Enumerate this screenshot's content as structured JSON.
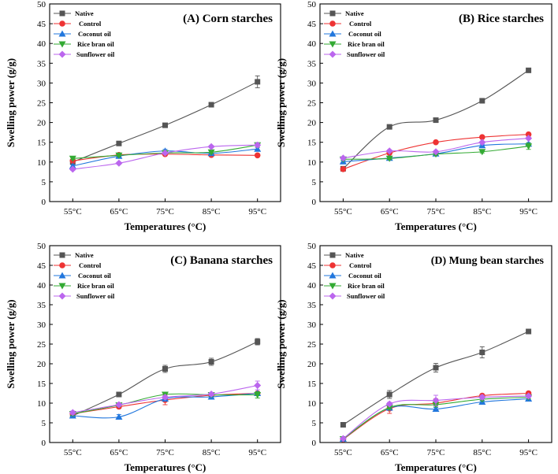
{
  "colors": {
    "native": "#555555",
    "control": "#ee3333",
    "coconut": "#2277dd",
    "rice_bran": "#33aa33",
    "sunflower": "#bb66ee"
  },
  "chart_data": [
    {
      "type": "line",
      "title": "(A) Corn starches",
      "xlabel": "Temperatures (°C)",
      "ylabel": "Swelling power (g/g)",
      "categories": [
        "55°C",
        "65°C",
        "75°C",
        "85°C",
        "95°C"
      ],
      "ylim": [
        0,
        50
      ],
      "yticks": [
        "0",
        "5",
        "10",
        "15",
        "20",
        "25",
        "30",
        "35",
        "40",
        "45",
        "50"
      ],
      "legend_position": "top-left",
      "series": [
        {
          "name": "Native",
          "values": [
            10.0,
            14.7,
            19.3,
            24.5,
            30.3
          ],
          "errors": [
            0.3,
            0.4,
            0.4,
            0.4,
            1.5
          ]
        },
        {
          "name": "Control",
          "values": [
            10.3,
            11.8,
            12.0,
            11.8,
            11.7
          ],
          "errors": [
            0.3,
            0.3,
            0.3,
            0.3,
            0.3
          ]
        },
        {
          "name": "Coconut oil",
          "values": [
            9.0,
            11.5,
            12.8,
            12.2,
            13.3
          ],
          "errors": [
            0.3,
            0.3,
            0.4,
            0.3,
            0.5
          ]
        },
        {
          "name": "Rice bran oil",
          "values": [
            10.9,
            11.7,
            12.3,
            12.5,
            14.3
          ],
          "errors": [
            0.3,
            0.3,
            0.3,
            0.3,
            0.6
          ]
        },
        {
          "name": "Sunflower oil",
          "values": [
            8.2,
            9.7,
            12.3,
            13.9,
            14.3
          ],
          "errors": [
            0.3,
            0.3,
            0.3,
            0.3,
            0.5
          ]
        }
      ]
    },
    {
      "type": "line",
      "title": "(B) Rice starches",
      "xlabel": "Temperatures (°C)",
      "ylabel": "Swelling power (g/g)",
      "categories": [
        "55°C",
        "65°C",
        "75°C",
        "85°C",
        "95°C"
      ],
      "ylim": [
        0,
        50
      ],
      "yticks": [
        "0",
        "5",
        "10",
        "15",
        "20",
        "25",
        "30",
        "35",
        "40",
        "45",
        "50"
      ],
      "legend_position": "top-left",
      "series": [
        {
          "name": "Native",
          "values": [
            8.3,
            18.9,
            20.6,
            25.5,
            33.2
          ],
          "errors": [
            0.3,
            0.4,
            0.4,
            0.4,
            0.4
          ]
        },
        {
          "name": "Control",
          "values": [
            8.2,
            12.3,
            15.0,
            16.3,
            17.0
          ],
          "errors": [
            0.3,
            0.3,
            0.3,
            0.3,
            0.3
          ]
        },
        {
          "name": "Coconut oil",
          "values": [
            10.1,
            11.0,
            12.1,
            14.2,
            14.6
          ],
          "errors": [
            0.3,
            0.3,
            0.3,
            0.3,
            0.3
          ]
        },
        {
          "name": "Rice bran oil",
          "values": [
            10.7,
            10.9,
            12.0,
            12.6,
            14.0
          ],
          "errors": [
            0.3,
            0.3,
            0.3,
            0.3,
            0.8
          ]
        },
        {
          "name": "Sunflower oil",
          "values": [
            11.0,
            12.8,
            12.6,
            15.0,
            16.0
          ],
          "errors": [
            0.3,
            0.3,
            0.3,
            0.3,
            0.3
          ]
        }
      ]
    },
    {
      "type": "line",
      "title": "(C) Banana starches",
      "xlabel": "Temperatures (°C)",
      "ylabel": "Swelling power (g/g)",
      "categories": [
        "55°C",
        "65°C",
        "75°C",
        "85°C",
        "95°C"
      ],
      "ylim": [
        0,
        50
      ],
      "yticks": [
        "0",
        "5",
        "10",
        "15",
        "20",
        "25",
        "30",
        "35",
        "40",
        "45",
        "50"
      ],
      "legend_position": "top-left",
      "series": [
        {
          "name": "Native",
          "values": [
            6.8,
            12.2,
            18.7,
            20.5,
            25.6
          ],
          "errors": [
            0.4,
            0.4,
            0.9,
            0.9,
            0.8
          ]
        },
        {
          "name": "Control",
          "values": [
            7.3,
            9.1,
            10.8,
            12.0,
            12.5
          ],
          "errors": [
            0.4,
            0.4,
            1.2,
            0.4,
            0.4
          ]
        },
        {
          "name": "Coconut oil",
          "values": [
            6.8,
            6.5,
            11.1,
            11.6,
            12.5
          ],
          "errors": [
            0.4,
            0.6,
            0.4,
            0.4,
            0.4
          ]
        },
        {
          "name": "Rice bran oil",
          "values": [
            7.3,
            9.5,
            12.2,
            12.1,
            12.1
          ],
          "errors": [
            0.4,
            0.4,
            0.4,
            0.4,
            0.8
          ]
        },
        {
          "name": "Sunflower oil",
          "values": [
            7.6,
            9.6,
            11.5,
            12.3,
            14.5
          ],
          "errors": [
            0.4,
            0.4,
            0.4,
            0.4,
            1.1
          ]
        }
      ]
    },
    {
      "type": "line",
      "title": "(D) Mung bean starches",
      "xlabel": "Temperatures (°C)",
      "ylabel": "Swelling power (g/g)",
      "categories": [
        "55°C",
        "65°C",
        "75°C",
        "85°C",
        "95°C"
      ],
      "ylim": [
        0,
        50
      ],
      "yticks": [
        "0",
        "5",
        "10",
        "15",
        "20",
        "25",
        "30",
        "35",
        "40",
        "45",
        "50"
      ],
      "legend_position": "top-left",
      "series": [
        {
          "name": "Native",
          "values": [
            4.5,
            12.2,
            19.0,
            22.9,
            28.2
          ],
          "errors": [
            0.3,
            1.0,
            1.1,
            1.4,
            0.4
          ]
        },
        {
          "name": "Control",
          "values": [
            0.8,
            8.6,
            10.0,
            11.9,
            12.5
          ],
          "errors": [
            0.3,
            1.2,
            1.1,
            0.4,
            0.4
          ]
        },
        {
          "name": "Coconut oil",
          "values": [
            0.9,
            8.8,
            8.5,
            10.3,
            11.1
          ],
          "errors": [
            0.3,
            0.4,
            0.4,
            0.4,
            0.4
          ]
        },
        {
          "name": "Rice bran oil",
          "values": [
            0.9,
            8.9,
            9.6,
            11.0,
            11.5
          ],
          "errors": [
            0.3,
            0.4,
            0.4,
            0.4,
            0.4
          ]
        },
        {
          "name": "Sunflower oil",
          "values": [
            1.0,
            9.8,
            10.7,
            11.5,
            11.8
          ],
          "errors": [
            0.3,
            0.4,
            1.3,
            0.5,
            0.4
          ]
        }
      ]
    }
  ]
}
